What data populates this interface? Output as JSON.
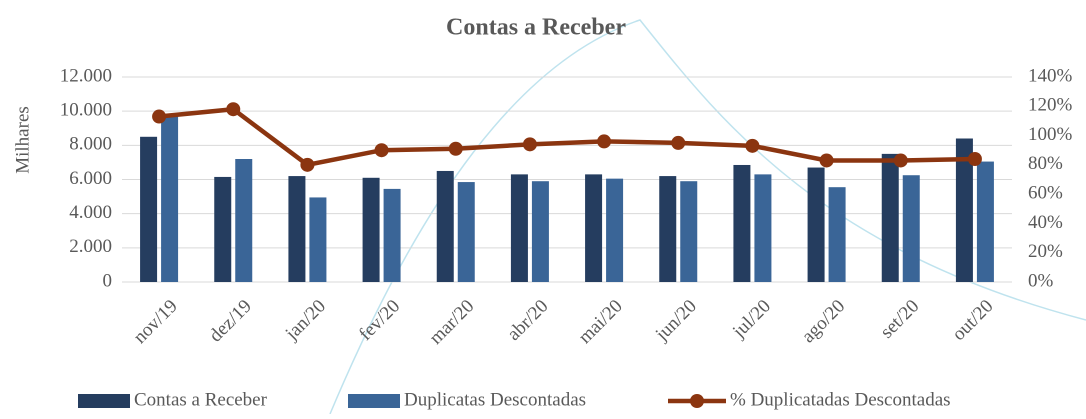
{
  "chart_data": {
    "type": "bar_line",
    "title": "Contas a Receber",
    "y_label": "Milhares",
    "categories": [
      "nov/19",
      "dez/19",
      "jan/20",
      "fev/20",
      "mar/20",
      "abr/20",
      "mai/20",
      "jun/20",
      "jul/20",
      "ago/20",
      "set/20",
      "out/20"
    ],
    "series": [
      {
        "name": "Contas a Receber",
        "color": "#253d5f",
        "values": [
          8500,
          6150,
          6200,
          6100,
          6500,
          6300,
          6300,
          6200,
          6850,
          6700,
          7500,
          8400
        ]
      },
      {
        "name": "Duplicatas Descontadas",
        "color": "#3a6597",
        "values": [
          9700,
          7200,
          4950,
          5450,
          5850,
          5900,
          6050,
          5900,
          6300,
          5550,
          6250,
          7050
        ]
      },
      {
        "name": "% Duplicatadas Descontadas",
        "color": "#8b3510",
        "axis": "y2",
        "values": [
          113,
          118,
          80,
          90,
          91,
          94,
          96,
          95,
          93,
          83,
          83,
          84
        ]
      }
    ],
    "ylim": [
      0,
      12000
    ],
    "yticks": [
      0,
      {
        "value": 2000,
        "label": "2.000"
      },
      {
        "value": 4000,
        "label": "4.000"
      },
      {
        "value": 6000,
        "label": "6.000"
      },
      {
        "value": 8000,
        "label": "8.000"
      },
      {
        "value": 10000,
        "label": "10.000"
      },
      {
        "value": 12000,
        "label": "12.000"
      }
    ],
    "y2lim": [
      0,
      140
    ],
    "y2ticks": [
      {
        "value": 0,
        "label": "0%"
      },
      {
        "value": 20,
        "label": "20%"
      },
      {
        "value": 40,
        "label": "40%"
      },
      {
        "value": 60,
        "label": "60%"
      },
      {
        "value": 80,
        "label": "80%"
      },
      {
        "value": 100,
        "label": "100%"
      },
      {
        "value": 120,
        "label": "120%"
      },
      {
        "value": 140,
        "label": "140%"
      }
    ],
    "legend": "bottom"
  }
}
